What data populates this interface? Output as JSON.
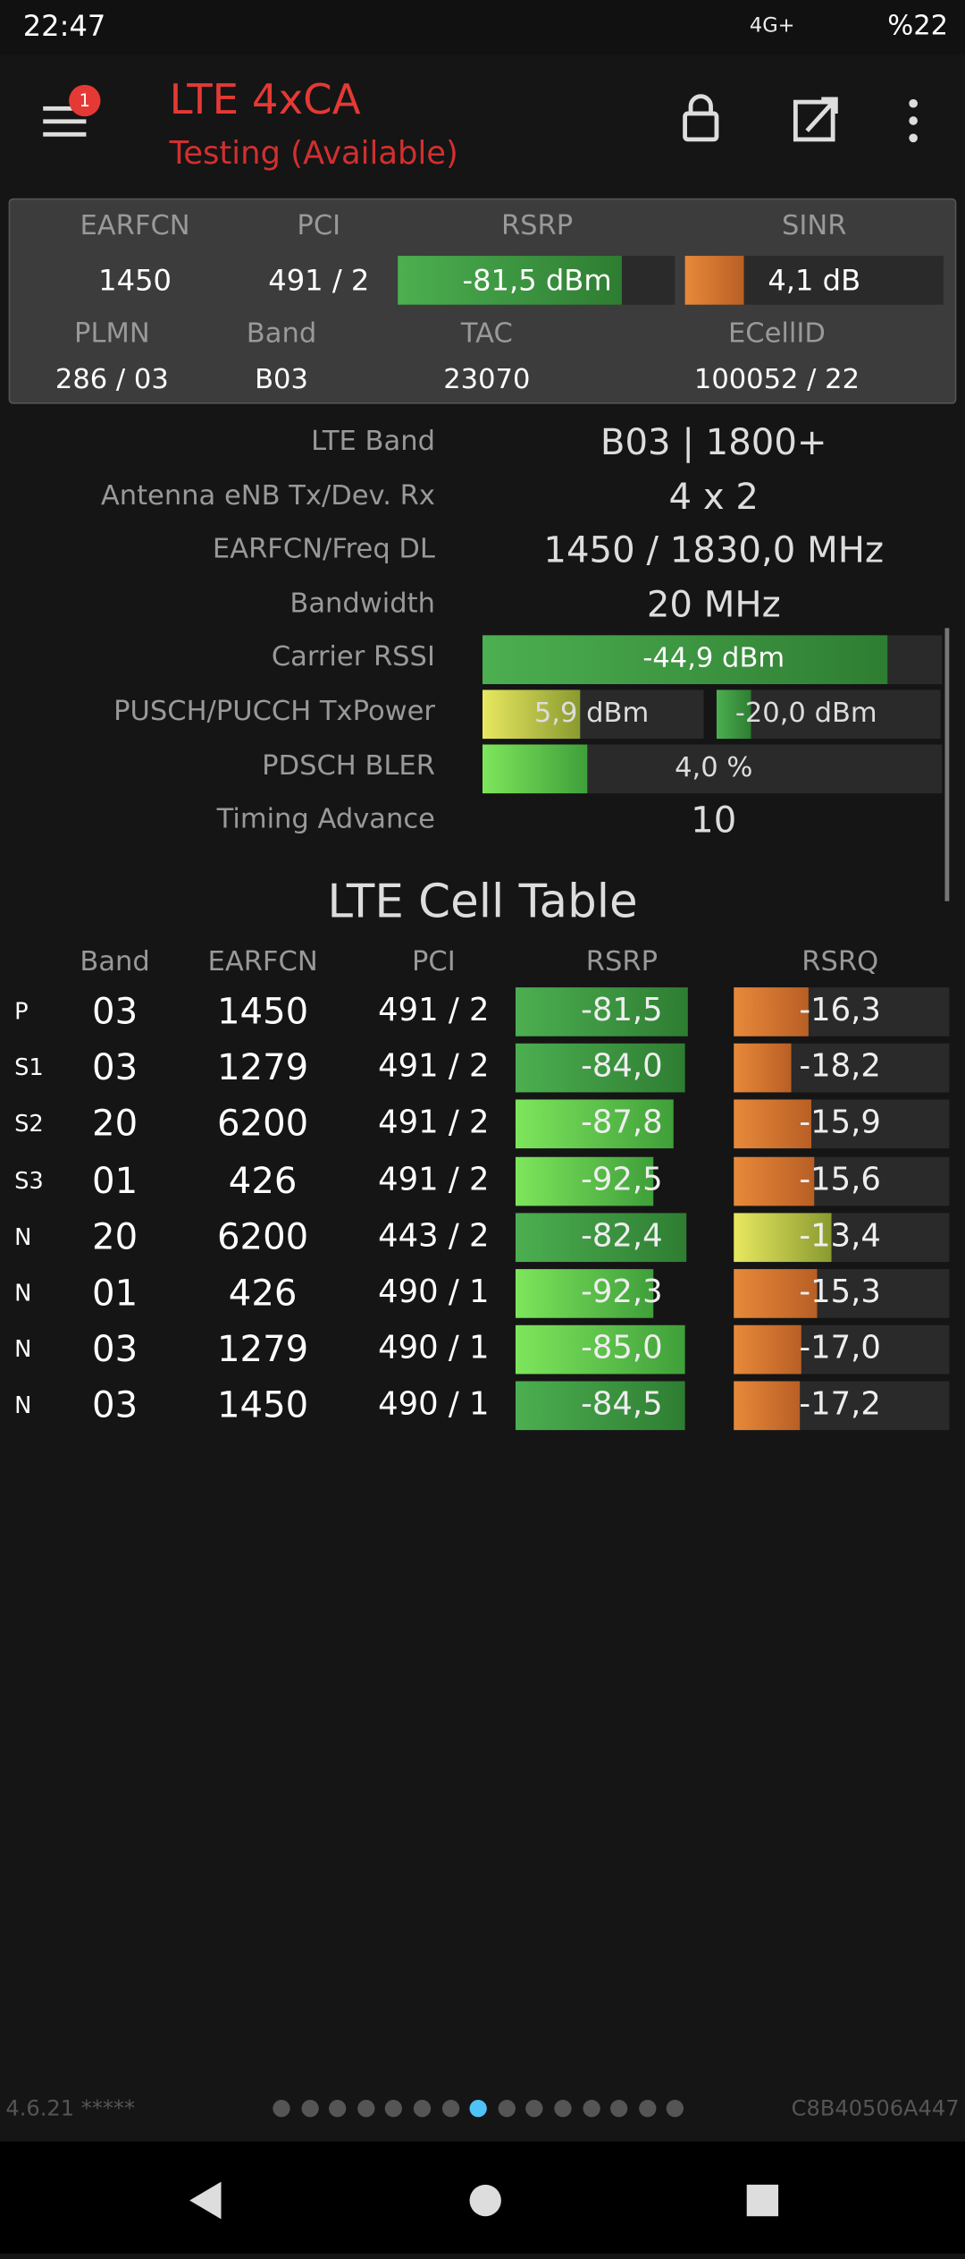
{
  "status": {
    "time": "22:47",
    "network": "4G+",
    "battery": "%22"
  },
  "header": {
    "title": "LTE 4xCA",
    "subtitle": "Testing (Available)",
    "badge": "1"
  },
  "summary": {
    "row1_labels": [
      "EARFCN",
      "PCI",
      "RSRP",
      "SINR"
    ],
    "row1_values": [
      "1450",
      "491 / 2",
      "-81,5 dBm",
      "4,1 dB"
    ],
    "row2_labels": [
      "PLMN",
      "Band",
      "TAC",
      "ECellID"
    ],
    "row2_values": [
      "286 / 03",
      "B03",
      "23070",
      "100052 / 22"
    ]
  },
  "details": {
    "rows": [
      {
        "label": "LTE Band",
        "value": "B03 | 1800+"
      },
      {
        "label": "Antenna eNB Tx/Dev. Rx",
        "value": "4 x 2"
      },
      {
        "label": "EARFCN/Freq DL",
        "value": "1450 / 1830,0 MHz"
      },
      {
        "label": "Bandwidth",
        "value": "20 MHz"
      },
      {
        "label": "Carrier RSSI",
        "value": "-44,9 dBm"
      },
      {
        "label": "PUSCH/PUCCH TxPower",
        "values": [
          "5,9 dBm",
          "-20,0 dBm"
        ]
      },
      {
        "label": "PDSCH BLER",
        "value": "4,0 %"
      },
      {
        "label": "Timing Advance",
        "value": "10"
      }
    ]
  },
  "cell_table": {
    "title": "LTE Cell Table",
    "columns": [
      "Band",
      "EARFCN",
      "PCI",
      "RSRP",
      "RSRQ"
    ],
    "rows": [
      [
        "P",
        "03",
        "1450",
        "491 / 2",
        "-81,5",
        "-16,3"
      ],
      [
        "S1",
        "03",
        "1279",
        "491 / 2",
        "-84,0",
        "-18,2"
      ],
      [
        "S2",
        "20",
        "6200",
        "491 / 2",
        "-87,8",
        "-15,9"
      ],
      [
        "S3",
        "01",
        "426",
        "491 / 2",
        "-92,5",
        "-15,6"
      ],
      [
        "N",
        "20",
        "6200",
        "443 / 2",
        "-82,4",
        "-13,4"
      ],
      [
        "N",
        "01",
        "426",
        "490 / 1",
        "-92,3",
        "-15,3"
      ],
      [
        "N",
        "03",
        "1279",
        "490 / 1",
        "-85,0",
        "-17,0"
      ],
      [
        "N",
        "03",
        "1450",
        "490 / 1",
        "-84,5",
        "-17,2"
      ]
    ]
  },
  "footer": {
    "version": "4.6.21 *****",
    "device_id": "C8B40506A447"
  }
}
